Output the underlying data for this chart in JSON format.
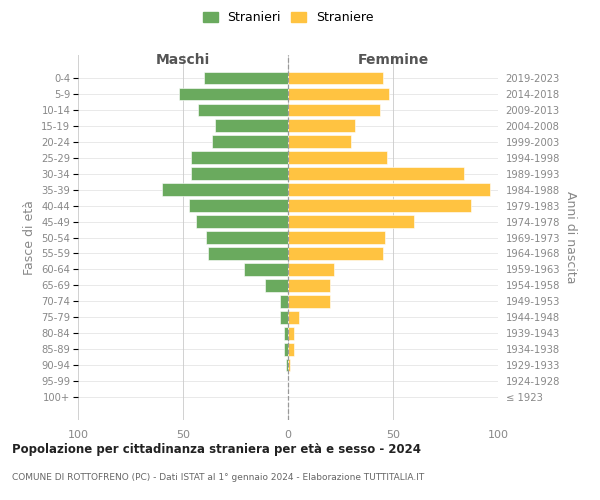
{
  "age_groups": [
    "100+",
    "95-99",
    "90-94",
    "85-89",
    "80-84",
    "75-79",
    "70-74",
    "65-69",
    "60-64",
    "55-59",
    "50-54",
    "45-49",
    "40-44",
    "35-39",
    "30-34",
    "25-29",
    "20-24",
    "15-19",
    "10-14",
    "5-9",
    "0-4"
  ],
  "birth_years": [
    "≤ 1923",
    "1924-1928",
    "1929-1933",
    "1934-1938",
    "1939-1943",
    "1944-1948",
    "1949-1953",
    "1954-1958",
    "1959-1963",
    "1964-1968",
    "1969-1973",
    "1974-1978",
    "1979-1983",
    "1984-1988",
    "1989-1993",
    "1994-1998",
    "1999-2003",
    "2004-2008",
    "2009-2013",
    "2014-2018",
    "2019-2023"
  ],
  "maschi": [
    0,
    0,
    1,
    2,
    2,
    4,
    4,
    11,
    21,
    38,
    39,
    44,
    47,
    60,
    46,
    46,
    36,
    35,
    43,
    52,
    40
  ],
  "femmine": [
    0,
    0,
    1,
    3,
    3,
    5,
    20,
    20,
    22,
    45,
    46,
    60,
    87,
    96,
    84,
    47,
    30,
    32,
    44,
    48,
    45
  ],
  "maschi_color": "#6aaa5e",
  "femmine_color": "#ffc341",
  "grid_color": "#cccccc",
  "title": "Popolazione per cittadinanza straniera per età e sesso - 2024",
  "subtitle": "COMUNE DI ROTTOFRENO (PC) - Dati ISTAT al 1° gennaio 2024 - Elaborazione TUTTITALIA.IT",
  "left_label": "Maschi",
  "right_label": "Femmine",
  "ylabel_left": "Fasce di età",
  "ylabel_right": "Anni di nascita",
  "legend_maschi": "Stranieri",
  "legend_femmine": "Straniere",
  "xlim": 100
}
